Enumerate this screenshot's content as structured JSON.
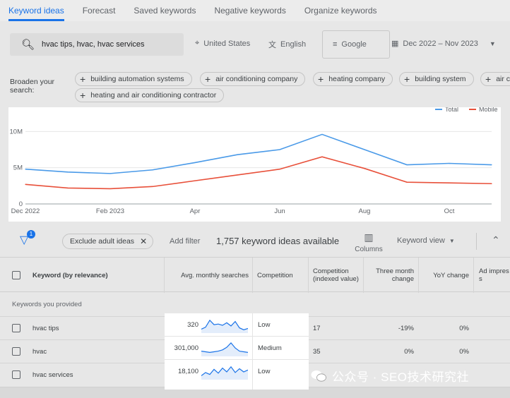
{
  "tabs": [
    {
      "label": "Keyword ideas",
      "active": true
    },
    {
      "label": "Forecast",
      "active": false
    },
    {
      "label": "Saved keywords",
      "active": false
    },
    {
      "label": "Negative keywords",
      "active": false
    },
    {
      "label": "Organize keywords",
      "active": false
    }
  ],
  "search": {
    "query": "hvac tips, hvac, hvac services",
    "location": "United States",
    "language": "English",
    "network": "Google",
    "date_range": "Dec 2022 – Nov 2023"
  },
  "broaden": {
    "label": "Broaden your search:",
    "chips": [
      "building automation systems",
      "air conditioning company",
      "heating company",
      "building system",
      "air c",
      "heating and air conditioning contractor"
    ]
  },
  "chart_data": {
    "type": "line",
    "x": [
      "Dec 2022",
      "Jan 2023",
      "Feb 2023",
      "Mar 2023",
      "Apr",
      "May 2023",
      "Jun",
      "Jul 2023",
      "Aug",
      "Sep 2023",
      "Oct",
      "Nov 2023"
    ],
    "x_tick_labels": [
      "Dec 2022",
      "Feb 2023",
      "Apr",
      "Jun",
      "Aug",
      "Oct"
    ],
    "series": [
      {
        "name": "Total",
        "color": "#4a9ae8",
        "values": [
          4.8,
          4.4,
          4.2,
          4.7,
          5.7,
          6.8,
          7.5,
          9.6,
          7.5,
          5.4,
          5.6,
          5.4
        ]
      },
      {
        "name": "Mobile",
        "color": "#e8503a",
        "values": [
          2.7,
          2.2,
          2.1,
          2.4,
          3.2,
          4.0,
          4.8,
          6.5,
          4.9,
          3.0,
          2.9,
          2.8
        ]
      }
    ],
    "y_tick_labels": [
      "0",
      "5M",
      "10M"
    ],
    "y_ticks": [
      0,
      5,
      10
    ],
    "ylim": [
      0,
      11.2
    ],
    "grid": true,
    "legend": "top-right"
  },
  "toolbar": {
    "filter_badge": "1",
    "exclude_chip": "Exclude adult ideas",
    "add_filter": "Add filter",
    "ideas_count": "1,757 keyword ideas available",
    "columns": "Columns",
    "keyword_view": "Keyword view"
  },
  "table": {
    "headers": {
      "keyword": "Keyword (by relevance)",
      "avg": "Avg. monthly searches",
      "competition": "Competition",
      "competition_indexed": "Competition (indexed value)",
      "three_month": "Three month change",
      "yoy": "YoY change",
      "ad_impr": "Ad impres s"
    },
    "section_label": "Keywords you provided",
    "rows": [
      {
        "keyword": "hvac tips",
        "avg": "320",
        "competition": "Low",
        "indexed": "17",
        "three_month": "-19%",
        "yoy": "0%",
        "spark": [
          0.2,
          0.35,
          0.9,
          0.55,
          0.6,
          0.5,
          0.7,
          0.45,
          0.8,
          0.3,
          0.15,
          0.25
        ]
      },
      {
        "keyword": "hvac",
        "avg": "301,000",
        "competition": "Medium",
        "indexed": "35",
        "three_month": "0%",
        "yoy": "0%",
        "spark": [
          0.3,
          0.25,
          0.2,
          0.25,
          0.3,
          0.4,
          0.6,
          0.95,
          0.55,
          0.3,
          0.25,
          0.2
        ]
      },
      {
        "keyword": "hvac services",
        "avg": "18,100",
        "competition": "Low",
        "indexed": "",
        "three_month": "",
        "yoy": "",
        "spark": [
          0.2,
          0.45,
          0.3,
          0.7,
          0.4,
          0.8,
          0.5,
          0.9,
          0.45,
          0.75,
          0.5,
          0.65
        ]
      }
    ]
  },
  "watermark": "公众号 · SEO技术研究社"
}
